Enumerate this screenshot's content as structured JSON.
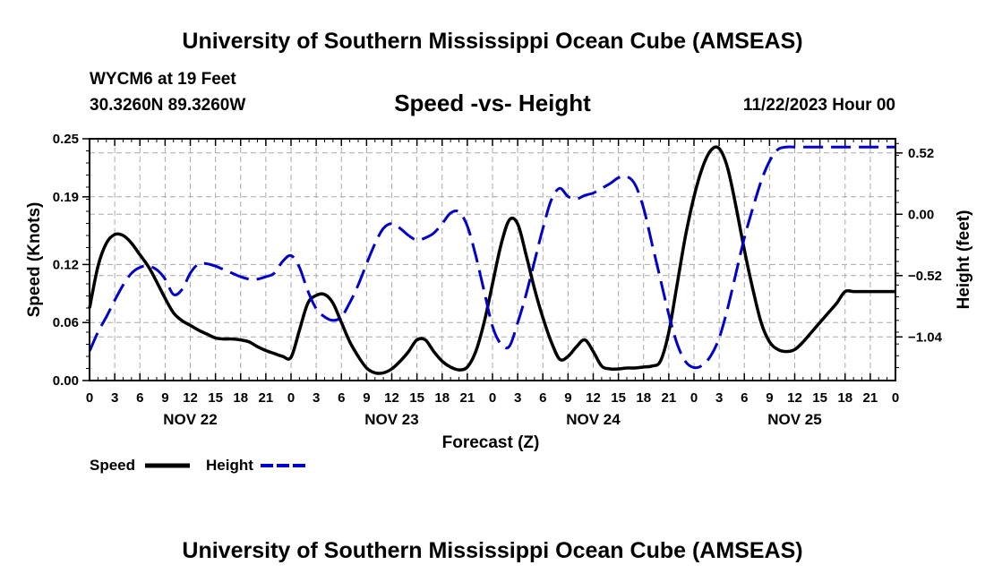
{
  "top_title": "University of Southern Mississippi Ocean Cube (AMSEAS)",
  "station": "WYCM6 at 19 Feet",
  "coords": "30.3260N  89.3260W",
  "datetime": "11/22/2023 Hour 00",
  "bottom_title": "University of Southern Mississippi Ocean Cube (AMSEAS)",
  "colors": {
    "speed": "#000000",
    "height": "#0000cc",
    "grid": "#aaaaaa"
  },
  "chart_data": {
    "type": "line",
    "title": "Speed -vs- Height",
    "xlabel": "Forecast (Z)",
    "ylabel": "Speed (Knots)",
    "y2label": "Height (feet)",
    "grid": true,
    "xlim": [
      0,
      96
    ],
    "ylim": [
      0,
      0.25
    ],
    "y2lim": [
      -1.41,
      0.64
    ],
    "yticks": [
      "0.00",
      "0.06",
      "0.12",
      "0.19",
      "0.25"
    ],
    "y2ticks": [
      "0.52",
      "0.00",
      "-0.52",
      "-1.04"
    ],
    "xtick_labels": [
      "0",
      "3",
      "6",
      "9",
      "12",
      "15",
      "18",
      "21",
      "0",
      "3",
      "6",
      "9",
      "12",
      "15",
      "18",
      "21",
      "0",
      "3",
      "6",
      "9",
      "12",
      "15",
      "18",
      "21",
      "0",
      "3",
      "6",
      "9",
      "12",
      "15",
      "18",
      "21",
      "0"
    ],
    "day_labels": [
      "NOV 22",
      "NOV 23",
      "NOV 24",
      "NOV 25"
    ],
    "series": [
      {
        "name": "Speed",
        "axis": "left",
        "style": "solid",
        "x": [
          0,
          1,
          2,
          3,
          4,
          5,
          6,
          7,
          8,
          9,
          10,
          11,
          12,
          13,
          14,
          15,
          16,
          17,
          18,
          19,
          20,
          21,
          22,
          23,
          24,
          25,
          26,
          27,
          28,
          29,
          30,
          31,
          32,
          33,
          34,
          35,
          36,
          37,
          38,
          39,
          40,
          41,
          42,
          43,
          44,
          45,
          46,
          47,
          48,
          49,
          50,
          51,
          52,
          53,
          54,
          55,
          56,
          57,
          58,
          59,
          60,
          61,
          62,
          63,
          64,
          65,
          66,
          67,
          68,
          69,
          70,
          71,
          72,
          73,
          74,
          75,
          76,
          77,
          78,
          79,
          80,
          81,
          82,
          83,
          84,
          85,
          86,
          87,
          88,
          89,
          90,
          91,
          92,
          93,
          94,
          95,
          96
        ],
        "values": [
          0.075,
          0.118,
          0.142,
          0.151,
          0.15,
          0.142,
          0.13,
          0.118,
          0.102,
          0.085,
          0.07,
          0.062,
          0.057,
          0.052,
          0.048,
          0.044,
          0.043,
          0.043,
          0.042,
          0.04,
          0.035,
          0.031,
          0.028,
          0.025,
          0.024,
          0.052,
          0.08,
          0.088,
          0.089,
          0.08,
          0.06,
          0.04,
          0.025,
          0.013,
          0.008,
          0.008,
          0.012,
          0.02,
          0.03,
          0.042,
          0.042,
          0.03,
          0.02,
          0.014,
          0.011,
          0.014,
          0.03,
          0.06,
          0.1,
          0.14,
          0.166,
          0.162,
          0.13,
          0.095,
          0.065,
          0.04,
          0.022,
          0.025,
          0.035,
          0.042,
          0.03,
          0.015,
          0.012,
          0.012,
          0.013,
          0.013,
          0.014,
          0.015,
          0.02,
          0.05,
          0.1,
          0.15,
          0.19,
          0.22,
          0.238,
          0.24,
          0.22,
          0.18,
          0.135,
          0.095,
          0.06,
          0.04,
          0.032,
          0.03,
          0.032,
          0.04,
          0.05,
          0.06,
          0.07,
          0.08,
          0.092,
          0.092,
          0.092,
          0.092,
          0.092,
          0.092,
          0.092
        ]
      },
      {
        "name": "Height",
        "axis": "right",
        "style": "dashed",
        "x": [
          0,
          1,
          2,
          3,
          4,
          5,
          6,
          7,
          8,
          9,
          10,
          11,
          12,
          13,
          14,
          15,
          16,
          17,
          18,
          19,
          20,
          21,
          22,
          23,
          24,
          25,
          26,
          27,
          28,
          29,
          30,
          31,
          32,
          33,
          34,
          35,
          36,
          37,
          38,
          39,
          40,
          41,
          42,
          43,
          44,
          45,
          46,
          47,
          48,
          49,
          50,
          51,
          52,
          53,
          54,
          55,
          56,
          57,
          58,
          59,
          60,
          61,
          62,
          63,
          64,
          65,
          66,
          67,
          68,
          69,
          70,
          71,
          72,
          73,
          74,
          75,
          76,
          77,
          78,
          79,
          80,
          81,
          82,
          83,
          84,
          85,
          86,
          87,
          88,
          89,
          90,
          91,
          92,
          93,
          94,
          95,
          96
        ],
        "values": [
          -1.16,
          -1.0,
          -0.87,
          -0.73,
          -0.6,
          -0.5,
          -0.45,
          -0.44,
          -0.47,
          -0.55,
          -0.68,
          -0.64,
          -0.5,
          -0.42,
          -0.42,
          -0.44,
          -0.47,
          -0.5,
          -0.53,
          -0.55,
          -0.55,
          -0.53,
          -0.5,
          -0.4,
          -0.35,
          -0.45,
          -0.65,
          -0.8,
          -0.87,
          -0.9,
          -0.87,
          -0.75,
          -0.6,
          -0.42,
          -0.25,
          -0.12,
          -0.08,
          -0.12,
          -0.18,
          -0.22,
          -0.2,
          -0.16,
          -0.08,
          0.01,
          0.02,
          -0.1,
          -0.35,
          -0.65,
          -0.95,
          -1.1,
          -1.12,
          -0.92,
          -0.68,
          -0.4,
          -0.12,
          0.12,
          0.22,
          0.15,
          0.13,
          0.16,
          0.18,
          0.22,
          0.26,
          0.31,
          0.32,
          0.25,
          0.05,
          -0.25,
          -0.55,
          -0.85,
          -1.1,
          -1.25,
          -1.3,
          -1.28,
          -1.2,
          -1.05,
          -0.8,
          -0.5,
          -0.2,
          0.05,
          0.28,
          0.45,
          0.55,
          0.57,
          0.57,
          0.57,
          0.57,
          0.57,
          0.57,
          0.57,
          0.57,
          0.57,
          0.57,
          0.57,
          0.57,
          0.57,
          0.57
        ]
      }
    ]
  },
  "legend": {
    "speed_label": "Speed",
    "height_label": "Height"
  }
}
